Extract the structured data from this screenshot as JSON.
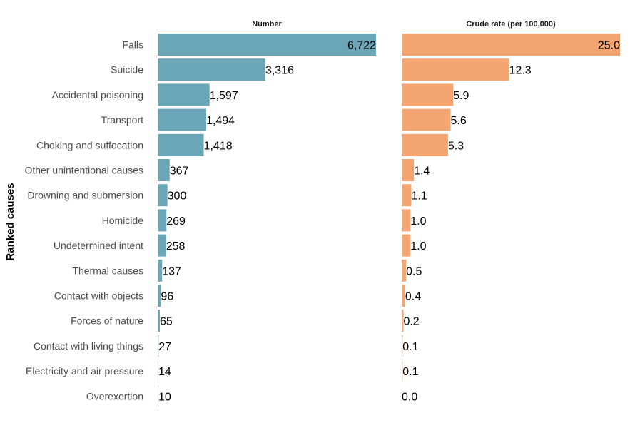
{
  "chart_data": {
    "type": "bar",
    "orientation": "horizontal",
    "ylabel": "Ranked causes",
    "categories": [
      "Falls",
      "Suicide",
      "Accidental poisoning",
      "Transport",
      "Choking and suffocation",
      "Other unintentional causes",
      "Drowning and submersion",
      "Homicide",
      "Undetermined intent",
      "Thermal causes",
      "Contact with objects",
      "Forces of nature",
      "Contact with living things",
      "Electricity and air pressure",
      "Overexertion"
    ],
    "panels": [
      {
        "title": "Number",
        "color": "#6aa5b8",
        "values": [
          6722,
          3316,
          1597,
          1494,
          1418,
          367,
          300,
          269,
          258,
          137,
          96,
          65,
          27,
          14,
          10
        ],
        "labels": [
          "6,722",
          "3,316",
          "1,597",
          "1,494",
          "1,418",
          "367",
          "300",
          "269",
          "258",
          "137",
          "96",
          "65",
          "27",
          "14",
          "10"
        ]
      },
      {
        "title": "Crude rate (per 100,000)",
        "color": "#f5a572",
        "values": [
          25.0,
          12.3,
          5.9,
          5.6,
          5.3,
          1.4,
          1.1,
          1.0,
          1.0,
          0.5,
          0.4,
          0.2,
          0.1,
          0.1,
          0.0
        ],
        "labels": [
          "25.0",
          "12.3",
          "5.9",
          "5.6",
          "5.3",
          "1.4",
          "1.1",
          "1.0",
          "1.0",
          "0.5",
          "0.4",
          "0.2",
          "0.1",
          "0.1",
          "0.0"
        ]
      }
    ],
    "grid": false,
    "legend": "none"
  }
}
